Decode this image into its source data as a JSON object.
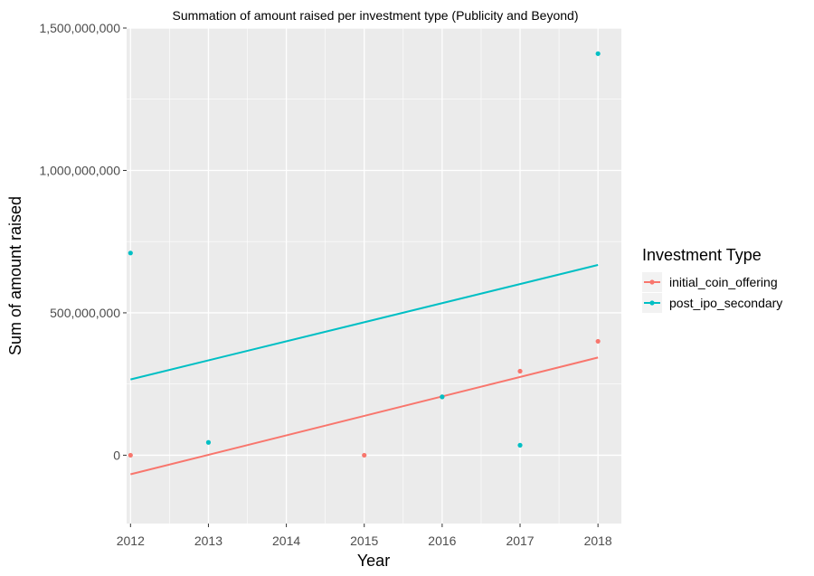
{
  "chart_data": {
    "type": "scatter",
    "title": "Summation of amount raised per investment type (Publicity and Beyond)",
    "xlabel": "Year",
    "ylabel": "Sum of amount raised",
    "x_ticks": [
      2012,
      2013,
      2014,
      2015,
      2016,
      2017,
      2018
    ],
    "x_tick_labels": [
      "2012",
      "2013",
      "2014",
      "2015",
      "2016",
      "2017",
      "2018"
    ],
    "xlim": [
      2011.95,
      2018.3
    ],
    "y_ticks": [
      0,
      500000000,
      1000000000,
      1500000000
    ],
    "y_tick_labels": [
      "0",
      "500,000,000",
      "1,000,000,000",
      "1,500,000,000"
    ],
    "ylim": [
      -240000000,
      1500000000
    ],
    "grid": true,
    "legend": {
      "title": "Investment Type",
      "position": "right"
    },
    "series": [
      {
        "name": "initial_coin_offering",
        "color": "#F8766D",
        "points": [
          {
            "x": 2012,
            "y": 0
          },
          {
            "x": 2015,
            "y": 0
          },
          {
            "x": 2016,
            "y": 205000000
          },
          {
            "x": 2017,
            "y": 295000000
          },
          {
            "x": 2018,
            "y": 400000000
          }
        ],
        "trend": [
          {
            "x": 2012,
            "y": -67000000
          },
          {
            "x": 2018,
            "y": 343000000
          }
        ]
      },
      {
        "name": "post_ipo_secondary",
        "color": "#00BFC4",
        "points": [
          {
            "x": 2012,
            "y": 710000000
          },
          {
            "x": 2013,
            "y": 45000000
          },
          {
            "x": 2016,
            "y": 205000000
          },
          {
            "x": 2017,
            "y": 35000000
          },
          {
            "x": 2018,
            "y": 1410000000
          }
        ],
        "trend": [
          {
            "x": 2012,
            "y": 266000000
          },
          {
            "x": 2018,
            "y": 668000000
          }
        ]
      }
    ]
  }
}
